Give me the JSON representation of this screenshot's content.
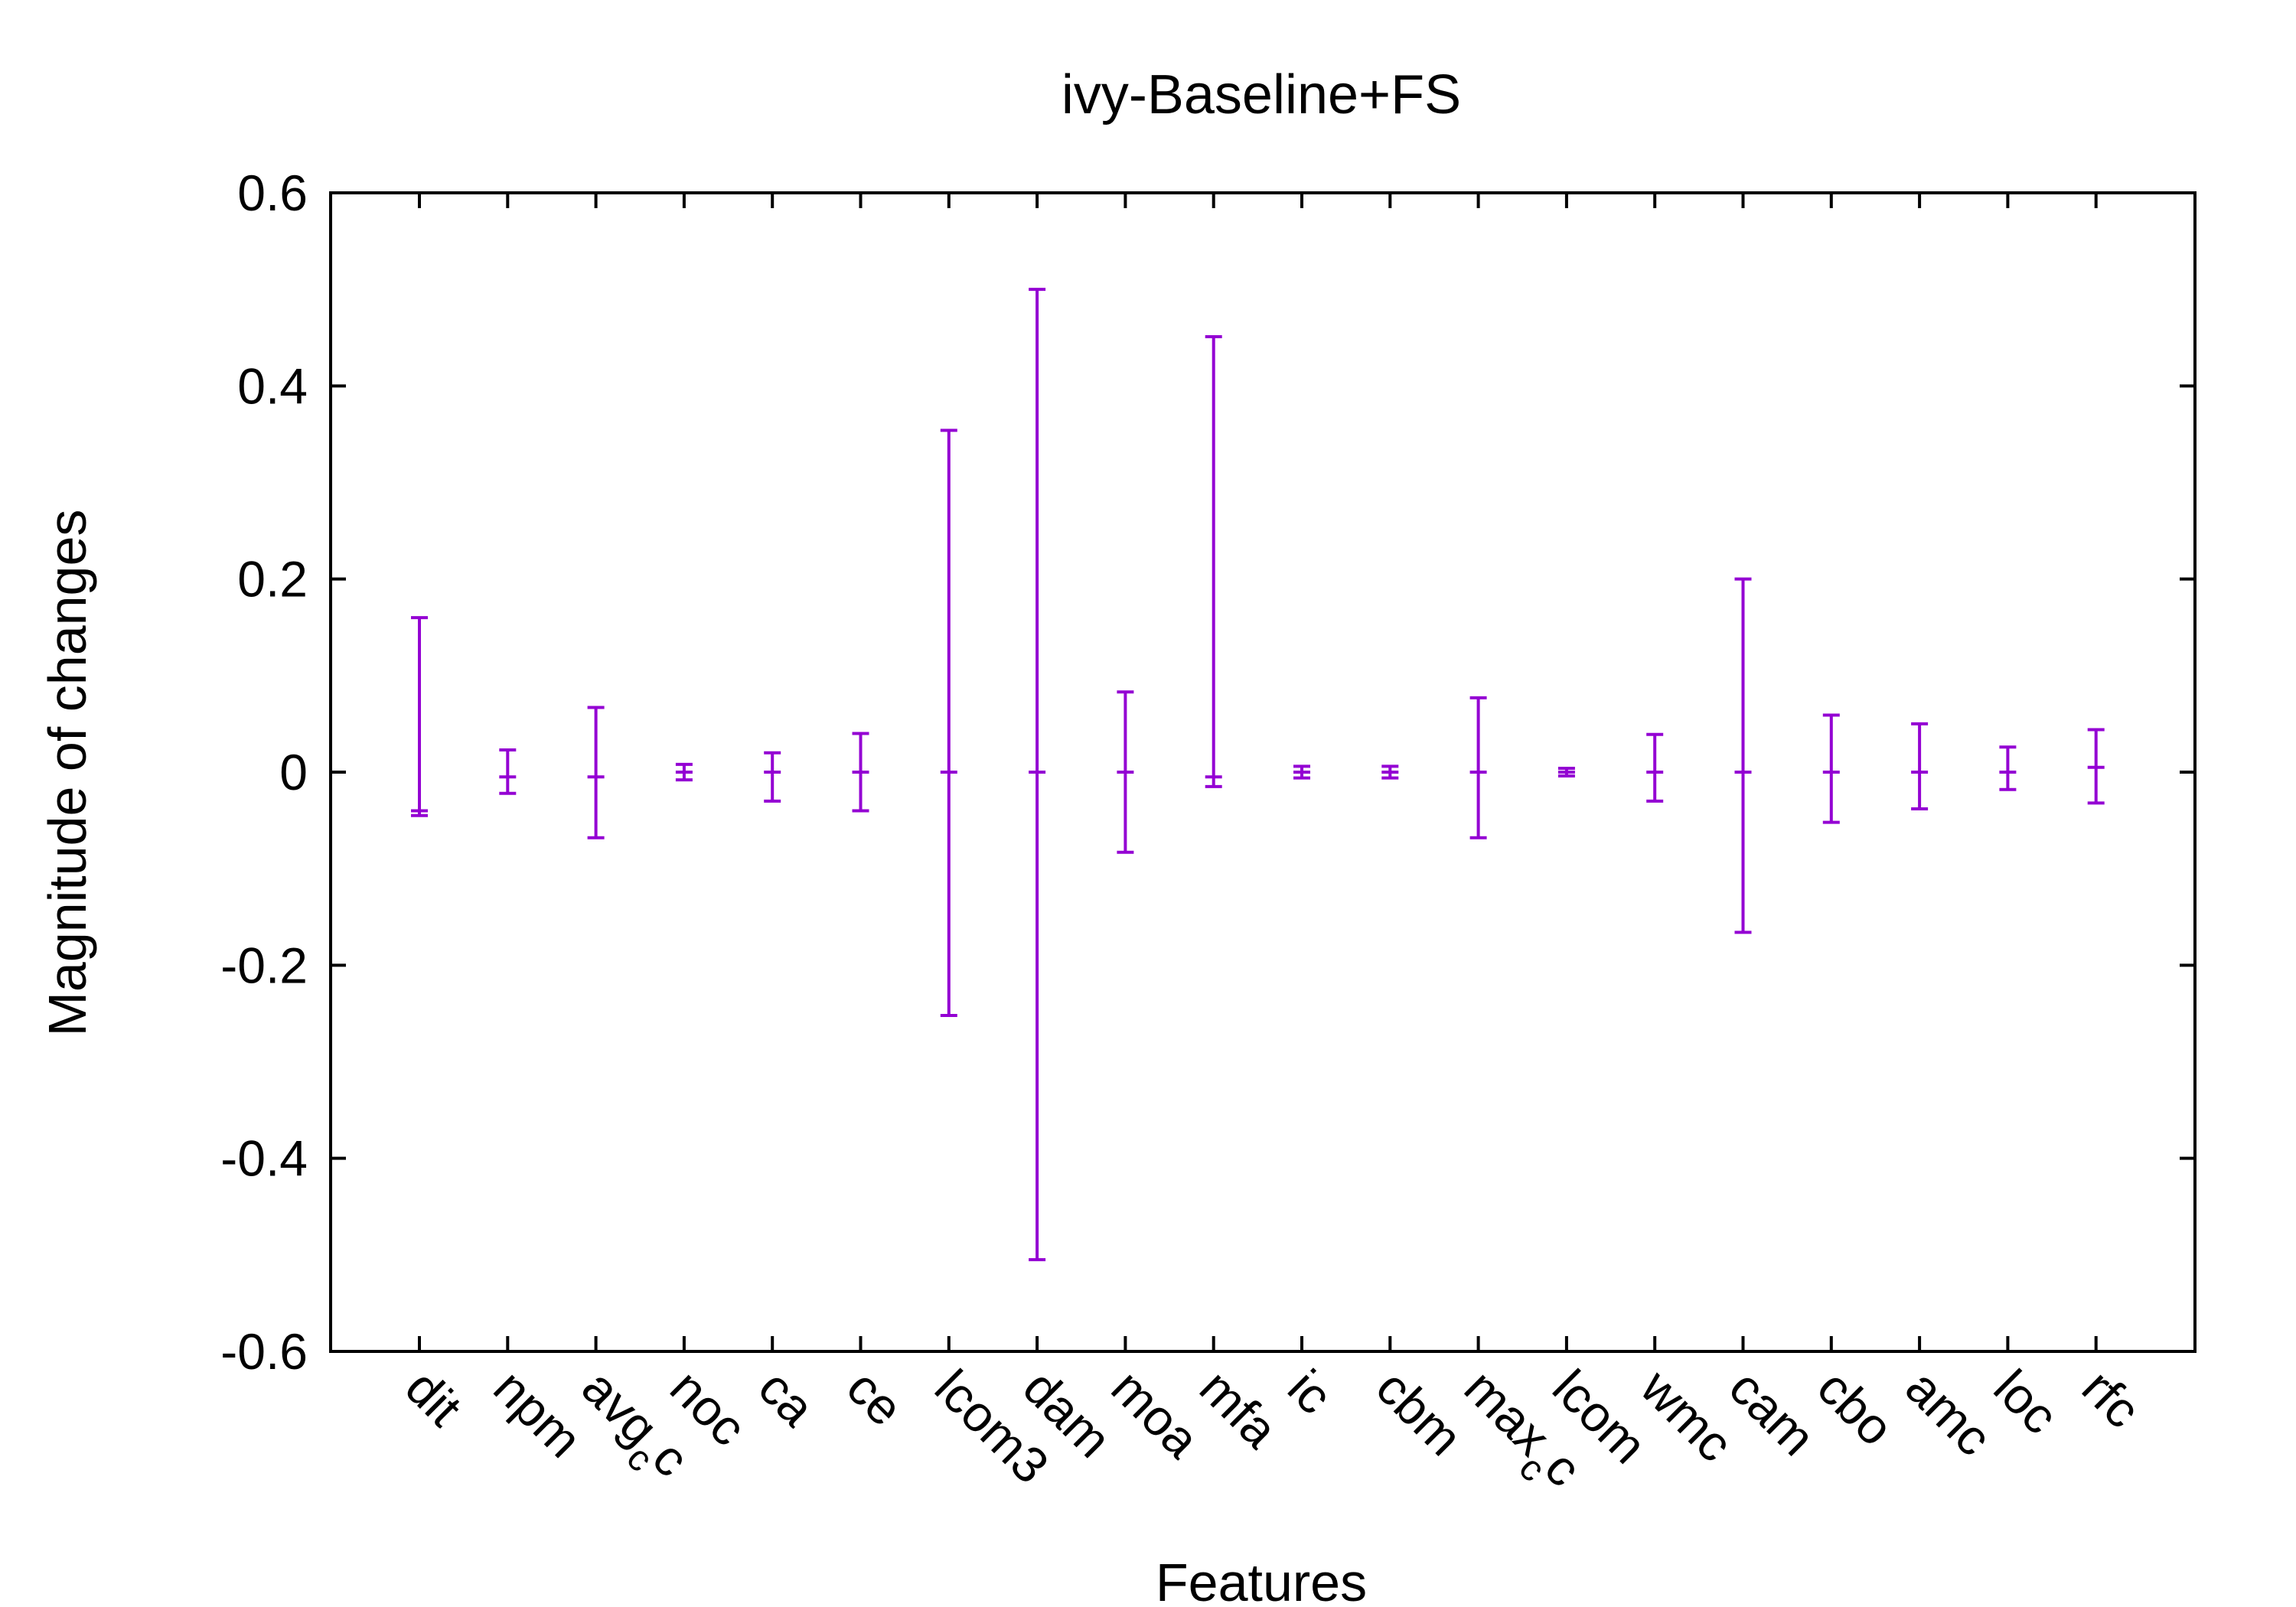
{
  "chart_data": {
    "type": "errorbar",
    "title": "ivy-Baseline+FS",
    "xlabel": "Features",
    "ylabel": "Magnitude of changes",
    "ylim": [
      -0.6,
      0.6
    ],
    "yticks": [
      -0.6,
      -0.4,
      -0.2,
      0,
      0.2,
      0.4,
      0.6
    ],
    "ytick_labels": [
      "-0.6",
      "-0.4",
      "-0.2",
      "0",
      "0.2",
      "0.4",
      "0.6"
    ],
    "grid": false,
    "color": "#9400d3",
    "categories": [
      {
        "label": "dit",
        "sub": ""
      },
      {
        "label": "npm",
        "sub": ""
      },
      {
        "label": "avg",
        "sub": "c",
        "suffix": "c"
      },
      {
        "label": "noc",
        "sub": ""
      },
      {
        "label": "ca",
        "sub": ""
      },
      {
        "label": "ce",
        "sub": ""
      },
      {
        "label": "lcom3",
        "sub": ""
      },
      {
        "label": "dam",
        "sub": ""
      },
      {
        "label": "moa",
        "sub": ""
      },
      {
        "label": "mfa",
        "sub": ""
      },
      {
        "label": "ic",
        "sub": ""
      },
      {
        "label": "cbm",
        "sub": ""
      },
      {
        "label": "max",
        "sub": "c",
        "suffix": "c"
      },
      {
        "label": "lcom",
        "sub": ""
      },
      {
        "label": "wmc",
        "sub": ""
      },
      {
        "label": "cam",
        "sub": ""
      },
      {
        "label": "cbo",
        "sub": ""
      },
      {
        "label": "amc",
        "sub": ""
      },
      {
        "label": "loc",
        "sub": ""
      },
      {
        "label": "rfc",
        "sub": ""
      }
    ],
    "series": [
      {
        "points": [
          {
            "center": -0.04,
            "low": -0.045,
            "high": 0.16
          },
          {
            "center": -0.005,
            "low": -0.022,
            "high": 0.023
          },
          {
            "center": -0.005,
            "low": -0.068,
            "high": 0.067
          },
          {
            "center": 0.0,
            "low": -0.008,
            "high": 0.008
          },
          {
            "center": 0.0,
            "low": -0.03,
            "high": 0.02
          },
          {
            "center": 0.0,
            "low": -0.04,
            "high": 0.04
          },
          {
            "center": 0.0,
            "low": -0.252,
            "high": 0.354
          },
          {
            "center": 0.0,
            "low": -0.505,
            "high": 0.5
          },
          {
            "center": 0.0,
            "low": -0.083,
            "high": 0.083
          },
          {
            "center": -0.005,
            "low": -0.015,
            "high": 0.451
          },
          {
            "center": 0.0,
            "low": -0.006,
            "high": 0.006
          },
          {
            "center": 0.0,
            "low": -0.006,
            "high": 0.006
          },
          {
            "center": 0.0,
            "low": -0.068,
            "high": 0.077
          },
          {
            "center": 0.0,
            "low": -0.004,
            "high": 0.004
          },
          {
            "center": 0.0,
            "low": -0.03,
            "high": 0.039
          },
          {
            "center": 0.0,
            "low": -0.166,
            "high": 0.2
          },
          {
            "center": 0.0,
            "low": -0.052,
            "high": 0.059
          },
          {
            "center": 0.0,
            "low": -0.038,
            "high": 0.05
          },
          {
            "center": 0.0,
            "low": -0.018,
            "high": 0.026
          },
          {
            "center": 0.005,
            "low": -0.032,
            "high": 0.044
          }
        ]
      }
    ]
  }
}
